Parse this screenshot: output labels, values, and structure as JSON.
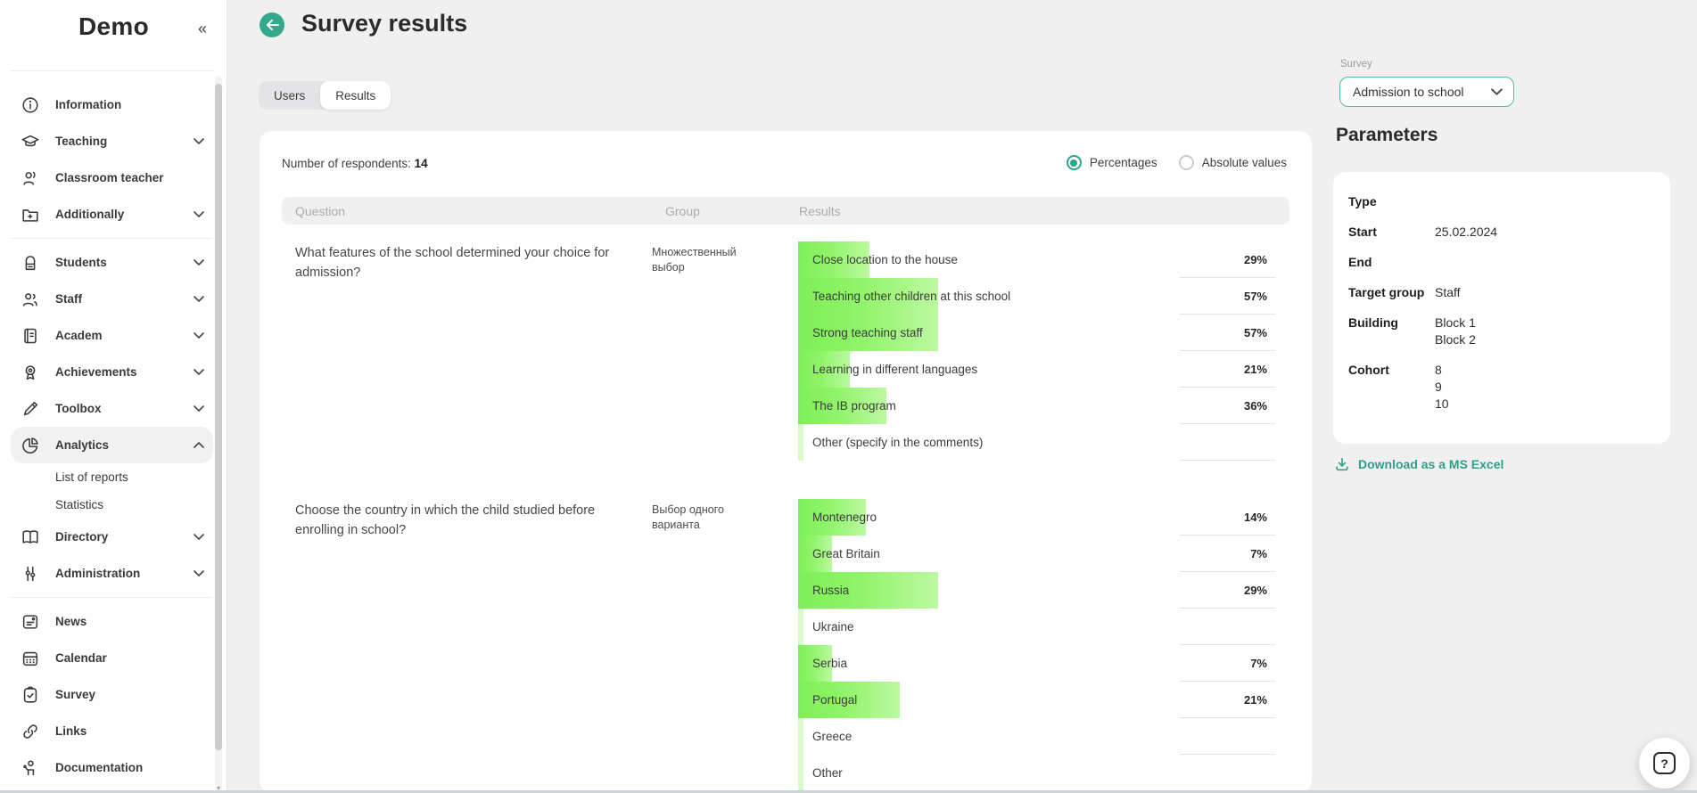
{
  "app": {
    "title": "Demo"
  },
  "sidebar": {
    "items": [
      {
        "type": "item",
        "label": "Information",
        "icon": "info-icon"
      },
      {
        "type": "item",
        "label": "Teaching",
        "icon": "teaching-icon",
        "chevron": "down"
      },
      {
        "type": "item",
        "label": "Classroom teacher",
        "icon": "classroom-teacher-icon"
      },
      {
        "type": "item",
        "label": "Additionally",
        "icon": "additionally-icon",
        "chevron": "down"
      },
      {
        "type": "divider"
      },
      {
        "type": "item",
        "label": "Students",
        "icon": "students-icon",
        "chevron": "down"
      },
      {
        "type": "item",
        "label": "Staff",
        "icon": "staff-icon",
        "chevron": "down"
      },
      {
        "type": "item",
        "label": "Academ",
        "icon": "academ-icon",
        "chevron": "down"
      },
      {
        "type": "item",
        "label": "Achievements",
        "icon": "achievements-icon",
        "chevron": "down"
      },
      {
        "type": "item",
        "label": "Toolbox",
        "icon": "toolbox-icon",
        "chevron": "down"
      },
      {
        "type": "item",
        "label": "Analytics",
        "icon": "analytics-icon",
        "chevron": "up",
        "active": true
      },
      {
        "type": "subitem",
        "label": "List of reports"
      },
      {
        "type": "subitem",
        "label": "Statistics"
      },
      {
        "type": "item",
        "label": "Directory",
        "icon": "directory-icon",
        "chevron": "down"
      },
      {
        "type": "item",
        "label": "Administration",
        "icon": "administration-icon",
        "chevron": "down"
      },
      {
        "type": "divider"
      },
      {
        "type": "item",
        "label": "News",
        "icon": "news-icon"
      },
      {
        "type": "item",
        "label": "Calendar",
        "icon": "calendar-icon"
      },
      {
        "type": "item",
        "label": "Survey",
        "icon": "survey-icon"
      },
      {
        "type": "item",
        "label": "Links",
        "icon": "links-icon"
      },
      {
        "type": "item",
        "label": "Documentation",
        "icon": "documentation-icon"
      }
    ]
  },
  "header": {
    "title": "Survey results"
  },
  "tabs": [
    {
      "label": "Users",
      "active": false
    },
    {
      "label": "Results",
      "active": true
    }
  ],
  "results_panel": {
    "respondents_label": "Number of respondents:",
    "respondents_value": "14",
    "display_options": [
      {
        "label": "Percentages",
        "selected": true
      },
      {
        "label": "Absolute values",
        "selected": false
      }
    ],
    "table": {
      "columns": [
        "Question",
        "Group",
        "Results"
      ],
      "questions": [
        {
          "question": "What features of the school determined your choice for admission?",
          "group": "Множественный выбор",
          "answers": [
            {
              "label": "Close location to the house",
              "pct": 29
            },
            {
              "label": "Teaching other children at this school",
              "pct": 57
            },
            {
              "label": "Strong teaching staff",
              "pct": 57
            },
            {
              "label": "Learning in different languages",
              "pct": 21
            },
            {
              "label": "The IB program",
              "pct": 36
            },
            {
              "label": "Other (specify in the comments)",
              "pct": null
            }
          ]
        },
        {
          "question": "Choose the country in which the child studied before enrolling in school?",
          "group": "Выбор одного варианта",
          "answers": [
            {
              "label": "Montenegro",
              "pct": 14
            },
            {
              "label": "Great Britain",
              "pct": 7
            },
            {
              "label": "Russia",
              "pct": 29
            },
            {
              "label": "Ukraine",
              "pct": null
            },
            {
              "label": "Serbia",
              "pct": 7
            },
            {
              "label": "Portugal",
              "pct": 21
            },
            {
              "label": "Greece",
              "pct": null
            },
            {
              "label": "Other",
              "pct": null
            }
          ]
        }
      ]
    }
  },
  "right_panel": {
    "survey_select": {
      "label": "Survey",
      "value": "Admission to school"
    },
    "parameters": {
      "title": "Parameters",
      "rows": [
        {
          "label": "Type",
          "values": []
        },
        {
          "label": "Start",
          "values": [
            "25.02.2024"
          ]
        },
        {
          "label": "End",
          "values": []
        },
        {
          "label": "Target group",
          "values": [
            "Staff"
          ]
        },
        {
          "label": "Building",
          "values": [
            "Block 1",
            "Block 2"
          ]
        },
        {
          "label": "Cohort",
          "values": [
            "8",
            "9",
            "10"
          ]
        }
      ]
    },
    "download_label": "Download as a MS Excel"
  },
  "help_button": {
    "label": "?"
  },
  "colors": {
    "accent_teal": "#35a98c",
    "bar_green": "#7df056",
    "bar_green_light": "#bcf9a0",
    "page_bg": "#f0f0f1"
  }
}
